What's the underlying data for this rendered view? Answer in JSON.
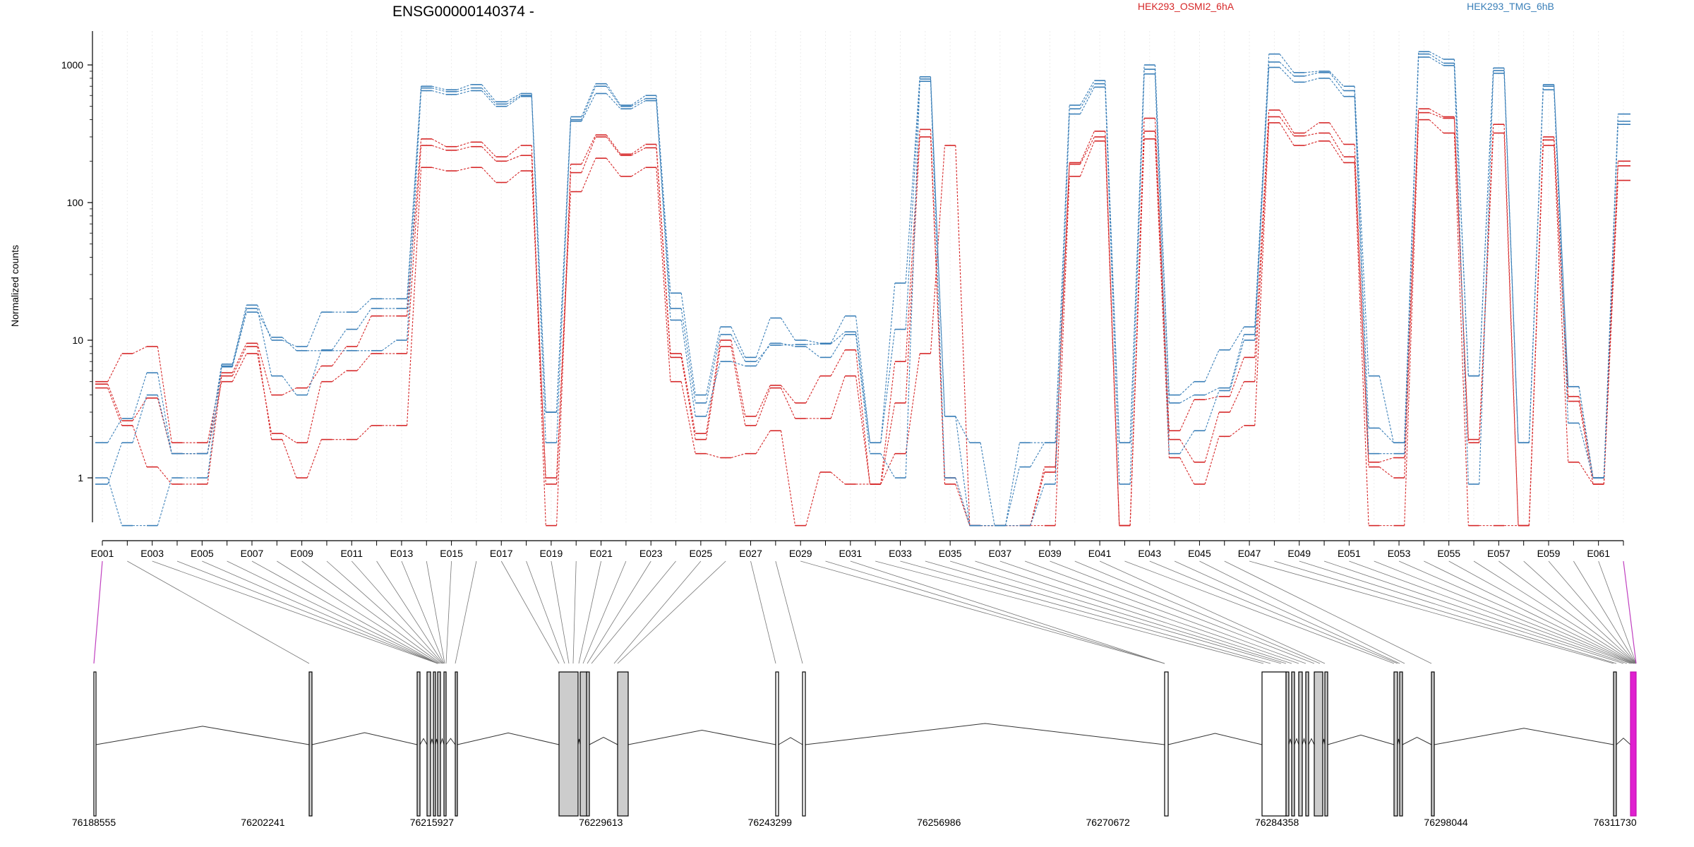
{
  "chart_data": {
    "type": "line",
    "title": "ENSG00000140374 -",
    "ylabel": "Normalized counts",
    "y_scale": "log",
    "ylim": [
      0.5,
      1500
    ],
    "y_ticks": [
      1,
      10,
      100,
      1000
    ],
    "y_tick_labels": [
      "1",
      "10",
      "100",
      "1000"
    ],
    "grid": "vertical",
    "legend": [
      {
        "name": "HEK293_OSMI2_6hA",
        "color": "#d62728"
      },
      {
        "name": "HEK293_TMG_6hB",
        "color": "#3a7fb8"
      }
    ],
    "categories": [
      "E001",
      "E002",
      "E003",
      "E004",
      "E005",
      "E006",
      "E007",
      "E008",
      "E009",
      "E010",
      "E011",
      "E012",
      "E013",
      "E014",
      "E015",
      "E016",
      "E017",
      "E018",
      "E019",
      "E020",
      "E021",
      "E022",
      "E023",
      "E024",
      "E025",
      "E026",
      "E027",
      "E028",
      "E029",
      "E030",
      "E031",
      "E032",
      "E033",
      "E034",
      "E035",
      "E036",
      "E037",
      "E038",
      "E039",
      "E040",
      "E041",
      "E042",
      "E043",
      "E044",
      "E045",
      "E046",
      "E047",
      "E048",
      "E049",
      "E050",
      "E051",
      "E052",
      "E053",
      "E054",
      "E055",
      "E056",
      "E057",
      "E058",
      "E059",
      "E060",
      "E061",
      "E062"
    ],
    "x_tick_labels": [
      "E001",
      "E003",
      "E005",
      "E007",
      "E009",
      "E011",
      "E013",
      "E015",
      "E017",
      "E019",
      "E021",
      "E023",
      "E025",
      "E027",
      "E029",
      "E031",
      "E033",
      "E035",
      "E037",
      "E039",
      "E041",
      "E043",
      "E045",
      "E047",
      "E049",
      "E051",
      "E053",
      "E055",
      "E057",
      "E059",
      "E061"
    ],
    "series": [
      {
        "group": "HEK293_OSMI2_6hA",
        "color": "#d62728",
        "values": [
          4.5,
          2.4,
          1.2,
          0.9,
          0.9,
          5.5,
          9,
          1.9,
          1,
          1.9,
          1.9,
          2.4,
          2.4,
          180,
          170,
          180,
          140,
          170,
          1,
          120,
          210,
          155,
          180,
          5,
          1.5,
          1.4,
          1.5,
          2.2,
          0.45,
          1.1,
          0.9,
          0.9,
          1.5,
          8,
          260,
          0.45,
          0.45,
          0.45,
          0.45,
          155,
          280,
          0.45,
          290,
          1.4,
          0.9,
          2,
          2.4,
          380,
          260,
          280,
          195,
          0.45,
          0.45,
          400,
          320,
          0.45,
          0.45,
          0.45,
          260,
          1.3,
          0.9,
          145
        ]
      },
      {
        "group": "HEK293_OSMI2_6hA",
        "color": "#d62728",
        "values": [
          4.8,
          2.6,
          3.8,
          1.5,
          1.5,
          5,
          8,
          2.1,
          1.8,
          5,
          6,
          8,
          8,
          260,
          240,
          255,
          200,
          220,
          0.9,
          165,
          300,
          220,
          250,
          7.5,
          1.9,
          9,
          2.4,
          4.5,
          2.7,
          2.7,
          5.5,
          0.9,
          3.5,
          300,
          1,
          0.45,
          0.45,
          0.45,
          1.1,
          190,
          300,
          0.45,
          330,
          1.9,
          1.3,
          3,
          5,
          420,
          305,
          320,
          215,
          1.2,
          1,
          450,
          410,
          1.8,
          320,
          0.45,
          285,
          3.6,
          0.9,
          185
        ]
      },
      {
        "group": "HEK293_OSMI2_6hA",
        "color": "#d62728",
        "values": [
          5,
          8,
          9,
          1.8,
          1.8,
          5.8,
          9.5,
          4,
          4.5,
          6.5,
          9,
          15,
          15,
          290,
          255,
          275,
          215,
          260,
          0.45,
          190,
          310,
          225,
          265,
          8,
          2.1,
          10,
          2.8,
          4.7,
          3.5,
          5.5,
          8.5,
          0.9,
          7,
          340,
          0.9,
          0.45,
          0.45,
          0.45,
          1.2,
          195,
          330,
          0.45,
          410,
          2.2,
          3.7,
          3.9,
          7.5,
          470,
          320,
          380,
          265,
          1.3,
          1.4,
          480,
          420,
          1.9,
          370,
          0.45,
          300,
          3.9,
          1,
          200
        ]
      },
      {
        "group": "HEK293_TMG_6hB",
        "color": "#3a7fb8",
        "values": [
          1,
          0.45,
          0.45,
          1,
          1,
          6.4,
          16,
          10.5,
          8.4,
          8.4,
          8.4,
          8.4,
          10,
          650,
          610,
          650,
          500,
          590,
          3,
          390,
          620,
          480,
          550,
          14,
          2.8,
          7,
          6.5,
          9.5,
          9,
          7.5,
          11,
          1.5,
          1,
          760,
          1,
          0.45,
          0.45,
          0.45,
          0.9,
          440,
          690,
          0.9,
          860,
          1.5,
          2.2,
          4.3,
          10,
          960,
          750,
          800,
          590,
          1.5,
          1.5,
          1140,
          990,
          0.9,
          870,
          1.8,
          660,
          2.5,
          1,
          370
        ]
      },
      {
        "group": "HEK293_TMG_6hB",
        "color": "#3a7fb8",
        "values": [
          0.9,
          1.8,
          4,
          1.5,
          1.5,
          6.5,
          17,
          5.5,
          4,
          8.5,
          12,
          17,
          17,
          680,
          640,
          680,
          520,
          600,
          1.8,
          400,
          700,
          500,
          570,
          17,
          3.5,
          11,
          7,
          9.2,
          9.3,
          9.4,
          11.5,
          1.8,
          12,
          790,
          2.8,
          0.45,
          0.45,
          1.2,
          1.8,
          480,
          730,
          1.8,
          930,
          3.5,
          4,
          4.5,
          11,
          1050,
          830,
          880,
          650,
          2.3,
          1.8,
          1200,
          1030,
          5.5,
          910,
          1.8,
          700,
          4.6,
          1,
          390
        ]
      },
      {
        "group": "HEK293_TMG_6hB",
        "color": "#3a7fb8",
        "values": [
          1.8,
          2.7,
          5.8,
          1.5,
          1.5,
          6.7,
          18,
          10,
          9,
          16,
          16,
          20,
          20,
          700,
          660,
          720,
          540,
          620,
          3,
          420,
          730,
          510,
          600,
          22,
          4,
          12.5,
          7.5,
          14.5,
          10,
          9.5,
          15,
          1.8,
          26,
          820,
          2.8,
          1.8,
          0.45,
          1.8,
          1.8,
          510,
          770,
          1.8,
          1000,
          4,
          5,
          8.5,
          12.5,
          1200,
          880,
          900,
          700,
          5.5,
          1.8,
          1250,
          1100,
          5.5,
          950,
          1.8,
          720,
          4.6,
          1,
          440
        ]
      }
    ],
    "genome_axis_ticks": [
      "76188555",
      "76202241",
      "76215927",
      "76229613",
      "76243299",
      "76256986",
      "76270672",
      "76284358",
      "76298044",
      "76311730"
    ]
  }
}
